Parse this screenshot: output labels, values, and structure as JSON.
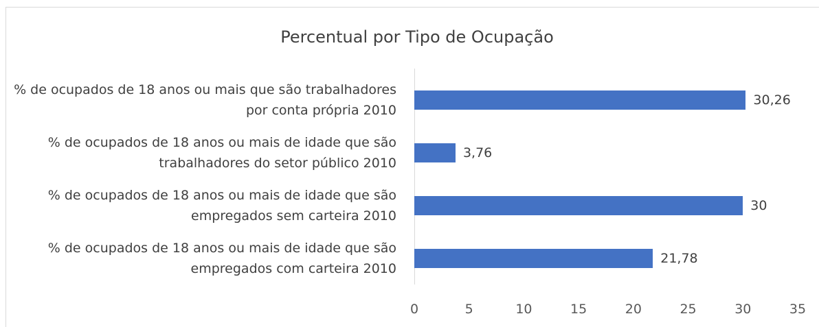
{
  "chart_data": {
    "type": "barh",
    "title": "Percentual  por Tipo de Ocupação",
    "categories": [
      "% de ocupados de 18 anos ou mais que são trabalhadores por conta própria 2010",
      "% de ocupados de 18 anos ou mais de idade que são trabalhadores do setor público 2010",
      "% de ocupados de 18 anos ou mais de idade que são empregados sem carteira 2010",
      "% de ocupados de 18 anos ou mais de idade que são empregados com carteira 2010"
    ],
    "values": [
      30.26,
      3.76,
      30,
      21.78
    ],
    "value_labels": [
      "30,26",
      "3,76",
      "30",
      "21,78"
    ],
    "color": "#4472c4",
    "xlim": [
      0,
      35
    ],
    "xticks": [
      0,
      5,
      10,
      15,
      20,
      25,
      30,
      35
    ]
  }
}
